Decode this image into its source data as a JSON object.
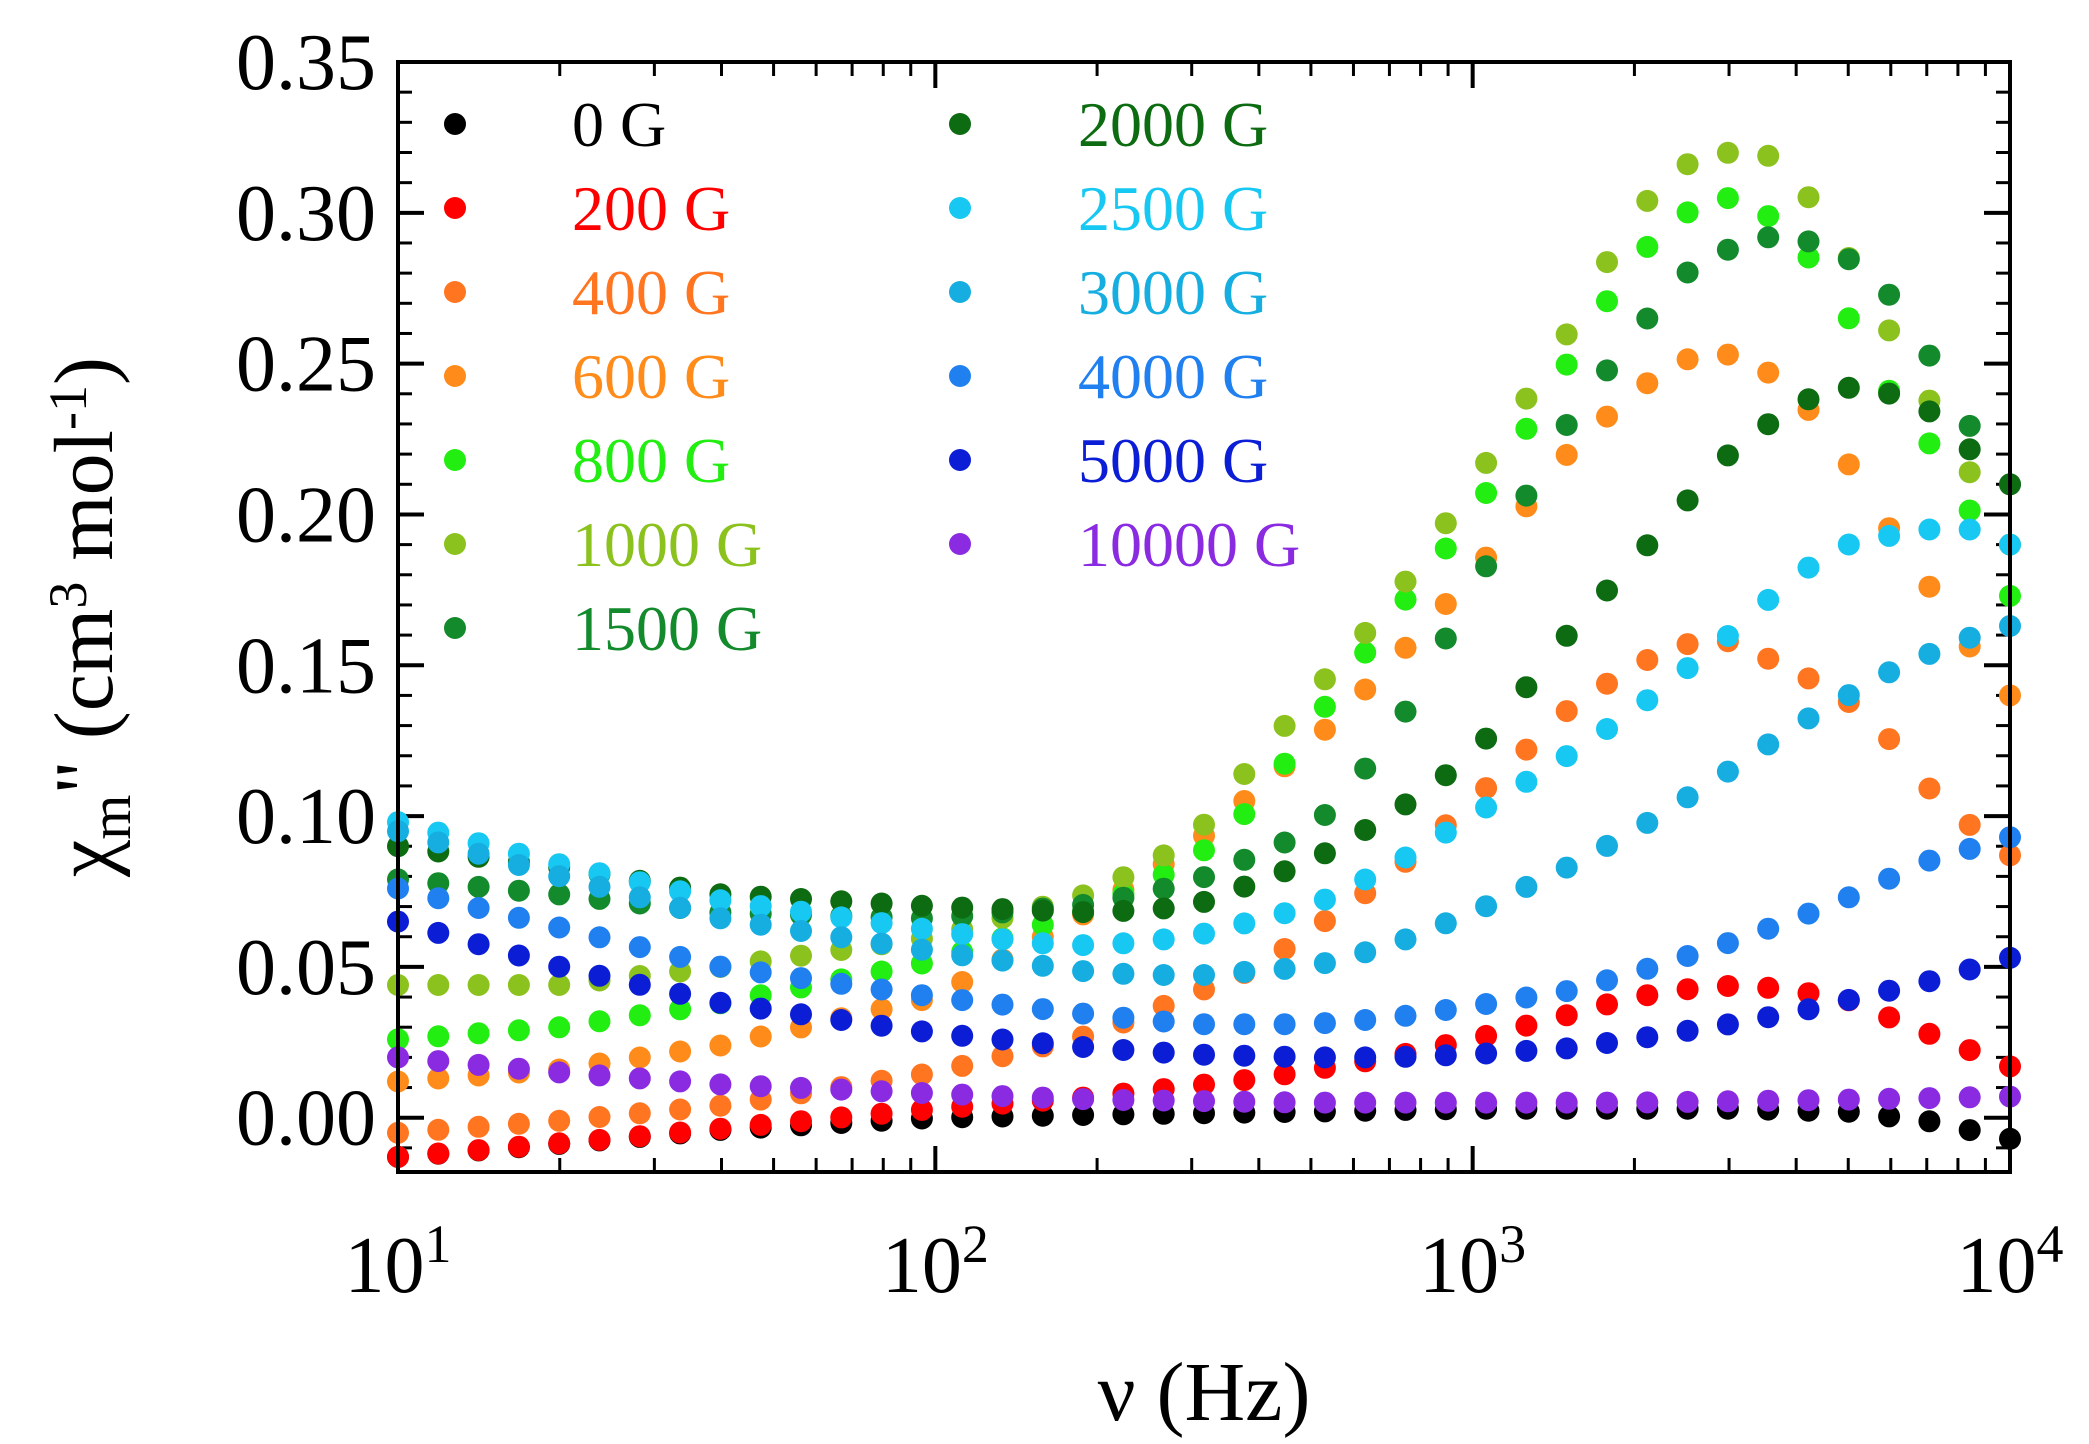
{
  "chart_data": {
    "type": "scatter",
    "title": "",
    "xlabel": "ν (Hz)",
    "ylabel_parts": {
      "chi": "χ",
      "sub": "m",
      "prime": "\"",
      "open": "(cm",
      "sup3": "3",
      "mid": " mol",
      "supm1": "-1",
      "close": ")"
    },
    "xscale": "log",
    "xlim": [
      10,
      10000
    ],
    "ylim": [
      -0.018,
      0.35
    ],
    "x_ticks": [
      {
        "value": 10,
        "base": "10",
        "exp": "1"
      },
      {
        "value": 100,
        "base": "10",
        "exp": "2"
      },
      {
        "value": 1000,
        "base": "10",
        "exp": "3"
      },
      {
        "value": 10000,
        "base": "10",
        "exp": "4"
      }
    ],
    "y_ticks": [
      {
        "value": 0.0,
        "label": "0.00"
      },
      {
        "value": 0.05,
        "label": "0.05"
      },
      {
        "value": 0.1,
        "label": "0.10"
      },
      {
        "value": 0.15,
        "label": "0.15"
      },
      {
        "value": 0.2,
        "label": "0.20"
      },
      {
        "value": 0.25,
        "label": "0.25"
      },
      {
        "value": 0.3,
        "label": "0.30"
      },
      {
        "value": 0.35,
        "label": "0.35"
      }
    ],
    "legend_position": "top-left",
    "series": [
      {
        "name": "0 G",
        "color": "#000000",
        "x": [
          10,
          19,
          40,
          100,
          200,
          500,
          1000,
          2000,
          3000,
          5000,
          7000,
          10000
        ],
        "y": [
          -0.013,
          -0.009,
          -0.004,
          0.0,
          0.001,
          0.002,
          0.003,
          0.003,
          0.003,
          0.002,
          -0.001,
          -0.007
        ]
      },
      {
        "name": "200 G",
        "color": "#ff0000",
        "x": [
          10,
          25,
          50,
          100,
          200,
          400,
          700,
          1000,
          1500,
          2000,
          2600,
          3200,
          4000,
          5000,
          6000,
          7500,
          10000
        ],
        "y": [
          -0.013,
          -0.007,
          -0.002,
          0.003,
          0.007,
          0.013,
          0.02,
          0.026,
          0.034,
          0.04,
          0.043,
          0.044,
          0.042,
          0.039,
          0.033,
          0.026,
          0.017
        ]
      },
      {
        "name": "400 G",
        "color": "#ff7520",
        "x": [
          10,
          20,
          40,
          100,
          200,
          400,
          700,
          1000,
          1500,
          2000,
          2500,
          3000,
          4000,
          5000,
          6000,
          7000,
          8000,
          10000
        ],
        "y": [
          -0.005,
          -0.001,
          0.004,
          0.015,
          0.028,
          0.05,
          0.08,
          0.105,
          0.135,
          0.15,
          0.157,
          0.158,
          0.148,
          0.138,
          0.125,
          0.11,
          0.1,
          0.087
        ]
      },
      {
        "name": "600 G",
        "color": "#ff8c1a",
        "x": [
          10,
          20,
          40,
          100,
          200,
          300,
          500,
          700,
          1000,
          1500,
          2000,
          2600,
          3000,
          3500,
          4500,
          5500,
          6500,
          7500,
          8500,
          10000
        ],
        "y": [
          0.012,
          0.016,
          0.024,
          0.04,
          0.07,
          0.09,
          0.124,
          0.15,
          0.18,
          0.22,
          0.241,
          0.253,
          0.253,
          0.248,
          0.23,
          0.205,
          0.185,
          0.17,
          0.155,
          0.14
        ]
      },
      {
        "name": "800 G",
        "color": "#22ee11",
        "x": [
          10,
          20,
          40,
          100,
          200,
          300,
          400,
          500,
          700,
          1000,
          1500,
          2000,
          2500,
          3000,
          3500,
          4500,
          6000,
          7000,
          8500,
          10000
        ],
        "y": [
          0.026,
          0.03,
          0.038,
          0.052,
          0.07,
          0.085,
          0.105,
          0.13,
          0.165,
          0.2,
          0.25,
          0.285,
          0.3,
          0.305,
          0.3,
          0.28,
          0.24,
          0.225,
          0.2,
          0.173
        ]
      },
      {
        "name": "1000 G",
        "color": "#8cc21e",
        "x": [
          10,
          20,
          40,
          100,
          200,
          300,
          400,
          500,
          700,
          1000,
          1500,
          2000,
          2500,
          3000,
          3500,
          4500,
          6000,
          7500,
          10000
        ],
        "y": [
          0.044,
          0.044,
          0.05,
          0.06,
          0.075,
          0.092,
          0.12,
          0.14,
          0.17,
          0.21,
          0.26,
          0.3,
          0.316,
          0.32,
          0.32,
          0.3,
          0.26,
          0.23,
          0.19
        ]
      },
      {
        "name": "1500 G",
        "color": "#138a2c",
        "x": [
          10,
          20,
          40,
          100,
          200,
          300,
          500,
          700,
          1000,
          1500,
          2000,
          2500,
          3000,
          3500,
          4500,
          5500,
          6500,
          8000,
          10000
        ],
        "y": [
          0.079,
          0.074,
          0.068,
          0.066,
          0.071,
          0.078,
          0.095,
          0.125,
          0.175,
          0.23,
          0.26,
          0.28,
          0.288,
          0.292,
          0.29,
          0.28,
          0.265,
          0.235,
          0.21
        ]
      },
      {
        "name": "2000 G",
        "color": "#0d6b12",
        "x": [
          10,
          20,
          40,
          100,
          200,
          300,
          500,
          700,
          1000,
          1500,
          2000,
          3000,
          4000,
          5000,
          6000,
          7000,
          8000,
          10000
        ],
        "y": [
          0.09,
          0.083,
          0.074,
          0.07,
          0.068,
          0.07,
          0.085,
          0.1,
          0.12,
          0.16,
          0.185,
          0.22,
          0.237,
          0.242,
          0.24,
          0.235,
          0.225,
          0.21
        ]
      },
      {
        "name": "2500 G",
        "color": "#17c8f2",
        "x": [
          10,
          20,
          40,
          100,
          150,
          200,
          300,
          500,
          700,
          1000,
          1500,
          2000,
          3000,
          4000,
          5000,
          6000,
          7000,
          8500,
          10000
        ],
        "y": [
          0.098,
          0.084,
          0.072,
          0.062,
          0.058,
          0.057,
          0.06,
          0.07,
          0.083,
          0.1,
          0.12,
          0.135,
          0.16,
          0.18,
          0.19,
          0.193,
          0.195,
          0.195,
          0.19
        ]
      },
      {
        "name": "3000 G",
        "color": "#16aee0",
        "x": [
          10,
          20,
          40,
          100,
          200,
          300,
          500,
          700,
          1000,
          1500,
          2000,
          3000,
          4000,
          5000,
          6000,
          8000,
          10000
        ],
        "y": [
          0.095,
          0.08,
          0.066,
          0.055,
          0.048,
          0.047,
          0.05,
          0.057,
          0.068,
          0.083,
          0.095,
          0.115,
          0.13,
          0.14,
          0.148,
          0.158,
          0.163
        ]
      },
      {
        "name": "4000 G",
        "color": "#2080f0",
        "x": [
          10,
          20,
          40,
          100,
          200,
          300,
          500,
          700,
          1000,
          1500,
          2000,
          3000,
          4000,
          5000,
          7000,
          10000
        ],
        "y": [
          0.076,
          0.063,
          0.05,
          0.04,
          0.034,
          0.031,
          0.031,
          0.033,
          0.037,
          0.042,
          0.048,
          0.058,
          0.066,
          0.073,
          0.085,
          0.093
        ]
      },
      {
        "name": "5000 G",
        "color": "#0b1ed6",
        "x": [
          10,
          20,
          40,
          100,
          200,
          300,
          500,
          700,
          1000,
          1500,
          2000,
          3000,
          4000,
          5000,
          7000,
          10000
        ],
        "y": [
          0.065,
          0.05,
          0.038,
          0.028,
          0.023,
          0.021,
          0.02,
          0.02,
          0.021,
          0.023,
          0.026,
          0.031,
          0.035,
          0.039,
          0.045,
          0.053
        ]
      },
      {
        "name": "10000 G",
        "color": "#8a2be2",
        "x": [
          10,
          20,
          40,
          100,
          200,
          500,
          1000,
          2000,
          5000,
          10000
        ],
        "y": [
          0.02,
          0.015,
          0.011,
          0.008,
          0.006,
          0.005,
          0.005,
          0.005,
          0.006,
          0.007
        ]
      }
    ]
  }
}
